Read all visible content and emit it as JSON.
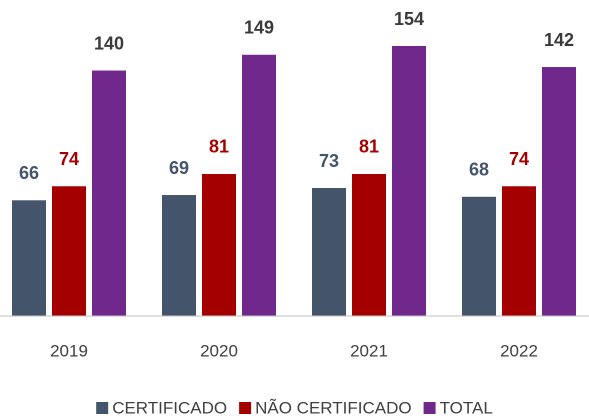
{
  "chart_data": {
    "type": "bar",
    "categories": [
      "2019",
      "2020",
      "2021",
      "2022"
    ],
    "series": [
      {
        "name": "CERTIFICADO",
        "color": "#44546a",
        "label_color": "#44546a",
        "values": [
          66,
          69,
          73,
          68
        ]
      },
      {
        "name": "NÃO CERTIFICADO",
        "color": "#a50000",
        "label_color": "#a50000",
        "values": [
          74,
          81,
          81,
          74
        ]
      },
      {
        "name": "TOTAL",
        "color": "#71288c",
        "label_color": "#3a3a3a",
        "values": [
          140,
          149,
          154,
          142
        ]
      }
    ],
    "legend": "bottom"
  }
}
